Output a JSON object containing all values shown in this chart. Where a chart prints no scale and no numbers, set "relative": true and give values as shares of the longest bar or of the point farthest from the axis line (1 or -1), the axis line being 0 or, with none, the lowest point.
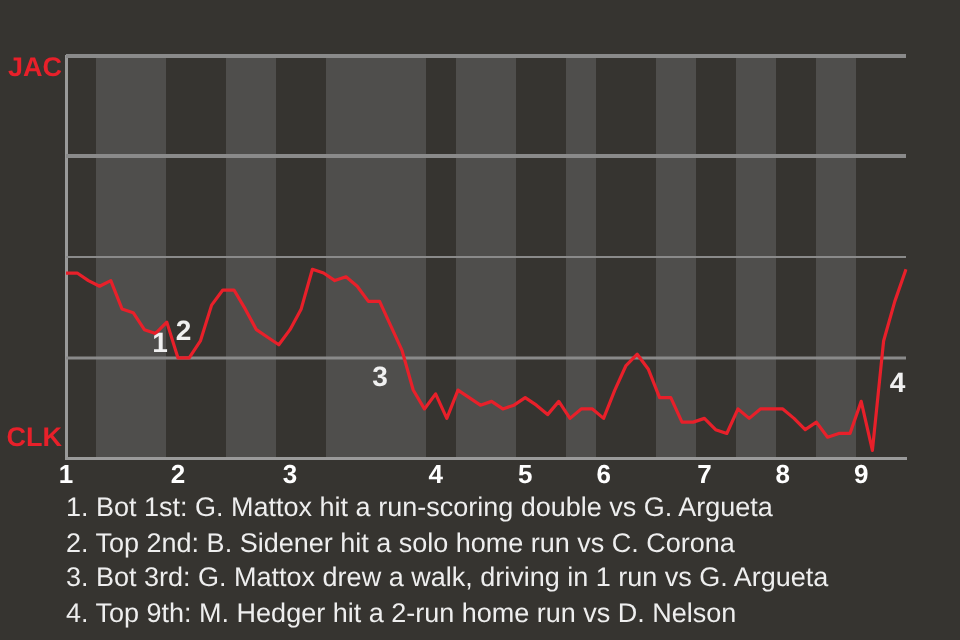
{
  "chart_data": {
    "type": "line",
    "relative": true,
    "categories": [
      "1",
      null,
      null,
      null,
      null,
      null,
      null,
      null,
      null,
      null,
      "2",
      null,
      null,
      null,
      null,
      null,
      null,
      null,
      null,
      null,
      "3",
      null,
      null,
      null,
      null,
      null,
      null,
      null,
      null,
      null,
      null,
      null,
      null,
      "4",
      null,
      null,
      null,
      null,
      null,
      null,
      null,
      "5",
      null,
      null,
      null,
      null,
      null,
      null,
      "6",
      null,
      null,
      null,
      null,
      null,
      null,
      null,
      null,
      "7",
      null,
      null,
      null,
      null,
      null,
      null,
      "8",
      null,
      null,
      null,
      null,
      null,
      null,
      "9",
      null,
      null,
      null,
      null
    ],
    "series": [
      {
        "color": "#e8202a",
        "values": [
          0.98,
          0.98,
          0.94,
          0.91,
          0.94,
          0.79,
          0.77,
          0.68,
          0.66,
          0.72,
          0.53,
          0.53,
          0.62,
          0.81,
          0.89,
          0.89,
          0.79,
          0.68,
          0.64,
          0.6,
          0.68,
          0.79,
          1,
          0.98,
          0.94,
          0.96,
          0.91,
          0.83,
          0.83,
          0.7,
          0.57,
          0.36,
          0.26,
          0.34,
          0.21,
          0.36,
          0.32,
          0.28,
          0.3,
          0.26,
          0.28,
          0.32,
          0.28,
          0.23,
          0.3,
          0.21,
          0.26,
          0.26,
          0.21,
          0.36,
          0.49,
          0.55,
          0.47,
          0.32,
          0.32,
          0.19,
          0.19,
          0.21,
          0.15,
          0.13,
          0.26,
          0.21,
          0.26,
          0.26,
          0.26,
          0.21,
          0.15,
          0.19,
          0.11,
          0.13,
          0.13,
          0.3,
          0.04,
          0.62,
          0.83,
          1
        ]
      }
    ],
    "annotations": [
      "JAC",
      "CLK",
      "1",
      "2",
      "3",
      "4",
      "1. Bot 1st: G. Mattox hit a run-scoring double vs G. Argueta",
      "2. Top 2nd: B. Sidener hit a solo home run vs C. Corona",
      "3. Bot 3rd: G. Mattox drew a walk, driving in 1 run vs G. Argueta",
      "4. Top 9th: M. Hedger hit a 2-run home run vs D. Nelson"
    ],
    "ref_lines": [
      {
        "axis": "y",
        "value": 0.53,
        "color": "#8a8a8a",
        "line_style": "solid"
      }
    ],
    "legend": false,
    "marker": "none",
    "line_style": "solid"
  }
}
